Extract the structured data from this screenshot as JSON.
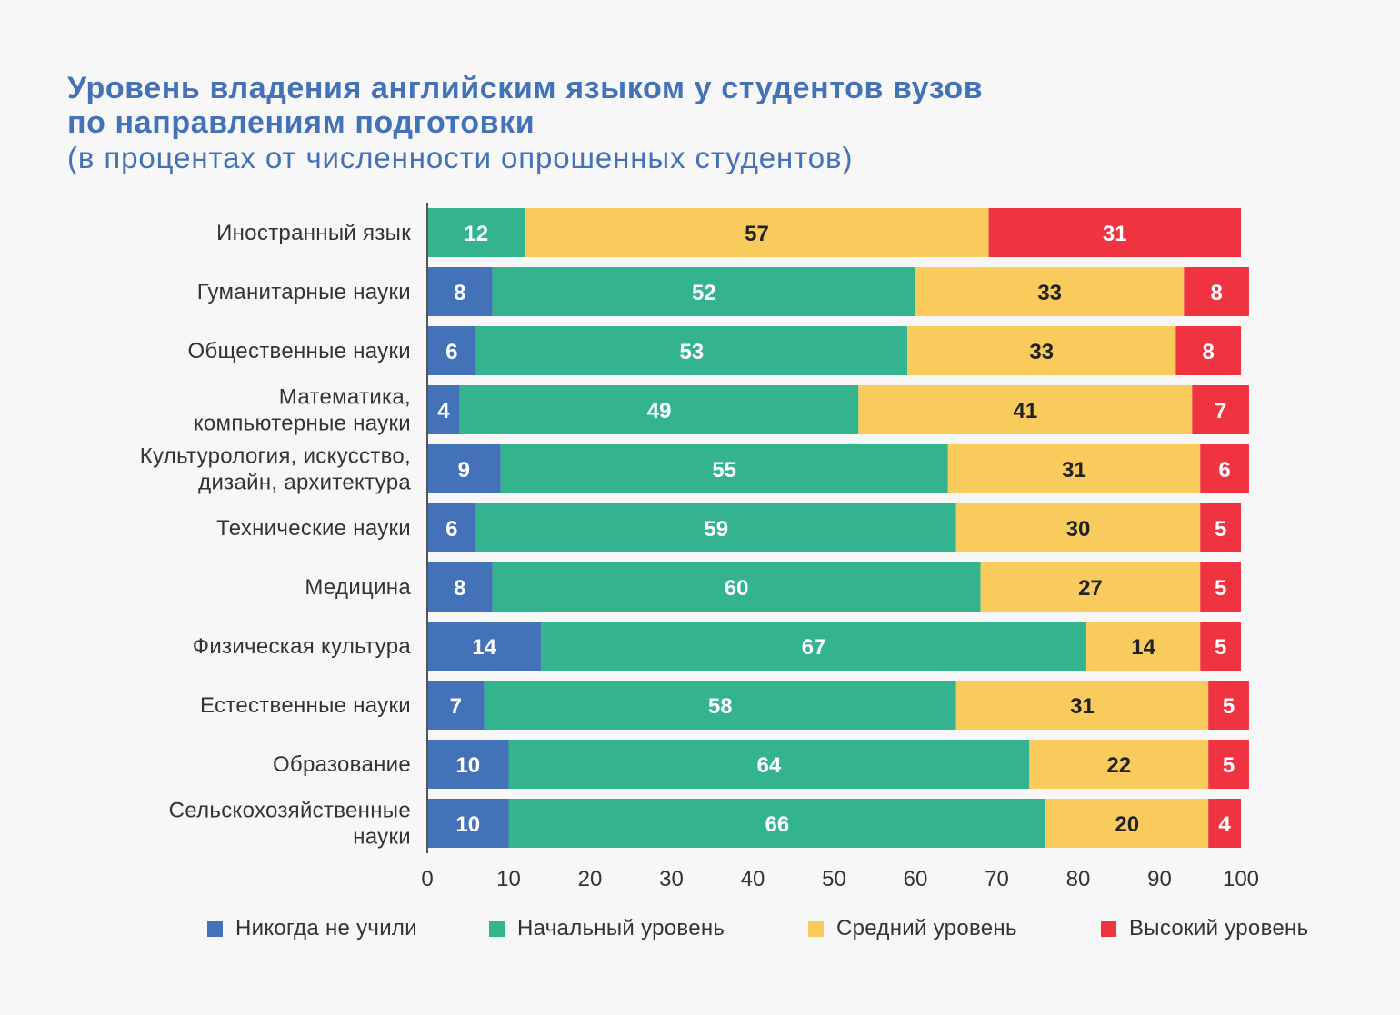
{
  "title": {
    "line1": "Уровень владения английским языком у студентов вузов",
    "line2": "по направлениям подготовки",
    "subtitle": "(в процентах от численности опрошенных студентов)"
  },
  "colors": {
    "never": "#4472b8",
    "basic": "#33b48e",
    "middle": "#f8cb5c",
    "high": "#ef3340",
    "title": "#4472b8"
  },
  "legend": [
    {
      "key": "never",
      "label": "Никогда не учили"
    },
    {
      "key": "basic",
      "label": "Начальный уровень"
    },
    {
      "key": "middle",
      "label": "Средний уровень"
    },
    {
      "key": "high",
      "label": "Высокий уровень"
    }
  ],
  "chart_data": {
    "type": "bar",
    "orientation": "horizontal",
    "stacked": true,
    "xlim": [
      0,
      100
    ],
    "xticks": [
      0,
      10,
      20,
      30,
      40,
      50,
      60,
      70,
      80,
      90,
      100
    ],
    "grid": false,
    "legend_position": "bottom",
    "categories": [
      [
        "Иностранный язык"
      ],
      [
        "Гуманитарные науки"
      ],
      [
        "Общественные науки"
      ],
      [
        "Математика,",
        "компьютерные науки"
      ],
      [
        "Культурология, искусство,",
        "дизайн, архитектура"
      ],
      [
        "Технические науки"
      ],
      [
        "Медицина"
      ],
      [
        "Физическая культура"
      ],
      [
        "Естественные науки"
      ],
      [
        "Образование"
      ],
      [
        "Сельскохозяйственные",
        "науки"
      ]
    ],
    "series": [
      {
        "key": "never",
        "name": "Никогда не учили",
        "values": [
          0,
          8,
          6,
          4,
          9,
          6,
          8,
          14,
          7,
          10,
          10
        ]
      },
      {
        "key": "basic",
        "name": "Начальный уровень",
        "values": [
          12,
          52,
          53,
          49,
          55,
          59,
          60,
          67,
          58,
          64,
          66
        ]
      },
      {
        "key": "middle",
        "name": "Средний уровень",
        "values": [
          57,
          33,
          33,
          41,
          31,
          30,
          27,
          14,
          31,
          22,
          20
        ]
      },
      {
        "key": "high",
        "name": "Высокий уровень",
        "values": [
          31,
          8,
          8,
          7,
          6,
          5,
          5,
          5,
          5,
          5,
          4
        ]
      }
    ]
  }
}
